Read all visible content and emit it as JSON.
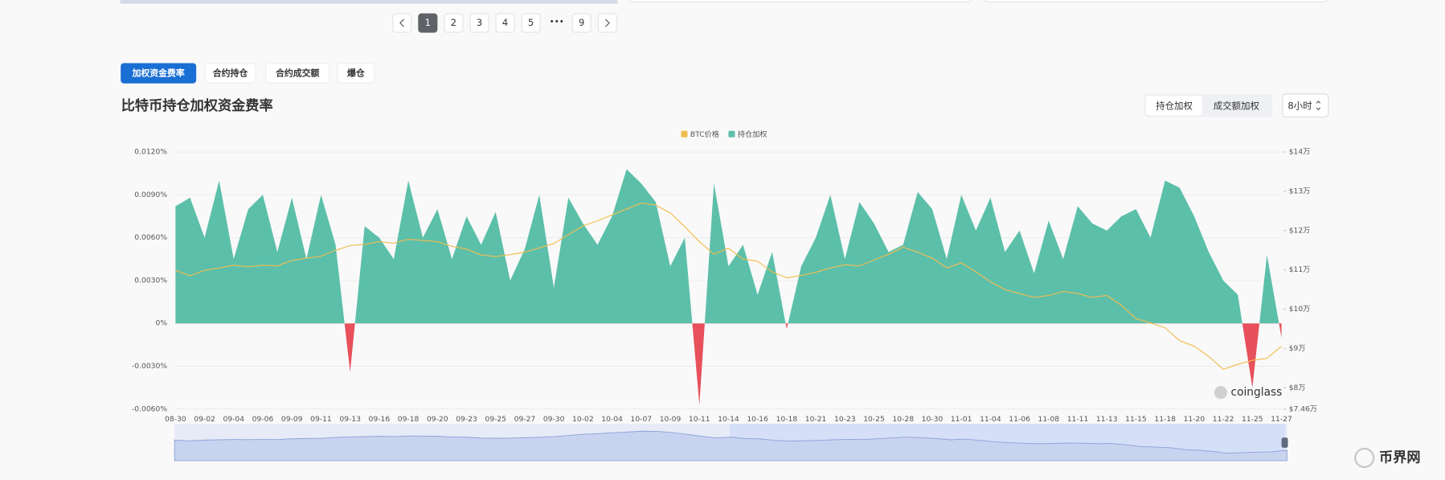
{
  "pagination": {
    "pages": [
      "1",
      "2",
      "3",
      "4",
      "5",
      "9"
    ],
    "ellipsis": "•••"
  },
  "tabs": [
    "加权资金费率",
    "合约持仓",
    "合约成交额",
    "爆仓"
  ],
  "title": "比特币持仓加权资金费率",
  "weighting_toggle": [
    "持仓加权",
    "成交额加权"
  ],
  "interval_select": "8小时",
  "watermark": "coinglass",
  "site_logo": "币界网",
  "chart_data": {
    "type": "area",
    "categories": [
      "08-30",
      null,
      "09-02",
      null,
      "09-04",
      null,
      "09-06",
      null,
      "09-09",
      null,
      "09-11",
      null,
      "09-13",
      null,
      "09-16",
      null,
      "09-18",
      null,
      "09-20",
      null,
      "09-23",
      null,
      "09-25",
      null,
      "09-27",
      null,
      "09-30",
      null,
      "10-02",
      null,
      "10-04",
      null,
      "10-07",
      null,
      "10-09",
      null,
      "10-11",
      null,
      "10-14",
      null,
      "10-16",
      null,
      "10-18",
      null,
      "10-21",
      null,
      "10-23",
      null,
      "10-25",
      null,
      "10-28",
      null,
      "10-30",
      null,
      "11-01",
      null,
      "11-04",
      null,
      "11-06",
      null,
      "11-08",
      null,
      "11-11",
      null,
      "11-13",
      null,
      "11-15",
      null,
      "11-18",
      null,
      "11-20",
      null,
      "11-22",
      null,
      "11-25",
      null,
      "11-27"
    ],
    "series": [
      {
        "name": "BTC价格",
        "color": "#f2bd4f",
        "type": "line",
        "axis": "y2",
        "values": [
          109900,
          108500,
          109900,
          110500,
          111200,
          110800,
          111200,
          111000,
          112400,
          113000,
          113500,
          115000,
          116200,
          116500,
          117200,
          116800,
          117800,
          117500,
          117200,
          116000,
          115300,
          113800,
          113400,
          113900,
          114500,
          115600,
          116700,
          119000,
          121200,
          122500,
          124000,
          125500,
          127000,
          126500,
          124500,
          121000,
          117200,
          114000,
          115500,
          112800,
          112200,
          109500,
          108000,
          108600,
          109400,
          110500,
          111300,
          111000,
          112500,
          114000,
          115800,
          114500,
          113000,
          110500,
          111800,
          109500,
          107000,
          105000,
          104000,
          103000,
          103500,
          104500,
          104000,
          103000,
          103500,
          101000,
          97600,
          96500,
          95300,
          92000,
          90600,
          88000,
          84700,
          86000,
          87000,
          87500,
          90600
        ]
      },
      {
        "name": "持仓加权",
        "color": "#5cbfaa",
        "negative_color": "#e8505b",
        "values": [
          0.0082,
          0.0088,
          0.006,
          0.01,
          0.0045,
          0.008,
          0.009,
          0.005,
          0.0088,
          0.0045,
          0.009,
          0.0055,
          -0.0034,
          0.0068,
          0.006,
          0.0045,
          0.01,
          0.006,
          0.008,
          0.0045,
          0.0075,
          0.0055,
          0.0078,
          0.003,
          0.0052,
          0.009,
          0.0025,
          0.0088,
          0.007,
          0.0055,
          0.0075,
          0.0108,
          0.0098,
          0.0085,
          0.004,
          0.006,
          -0.0057,
          0.0098,
          0.004,
          0.0055,
          0.002,
          0.005,
          -0.0004,
          0.004,
          0.006,
          0.009,
          0.0045,
          0.0085,
          0.007,
          0.005,
          0.0055,
          0.0092,
          0.008,
          0.0045,
          0.009,
          0.0065,
          0.0088,
          0.005,
          0.0065,
          0.0035,
          0.0072,
          0.0045,
          0.0082,
          0.007,
          0.0065,
          0.0075,
          0.008,
          0.006,
          0.01,
          0.0095,
          0.0075,
          0.005,
          0.003,
          0.002,
          -0.0045,
          0.0048,
          -0.001
        ]
      }
    ],
    "ylim": [
      -0.006,
      0.012
    ],
    "yticks": [
      {
        "value": -0.006,
        "label": "-0.0060%"
      },
      {
        "value": -0.003,
        "label": "-0.0030%"
      },
      {
        "value": 0,
        "label": "0%"
      },
      {
        "value": 0.003,
        "label": "0.0030%"
      },
      {
        "value": 0.006,
        "label": "0.0060%"
      },
      {
        "value": 0.009,
        "label": "0.0090%"
      },
      {
        "value": 0.012,
        "label": "0.0120%"
      }
    ],
    "y2lim": [
      74600,
      140000
    ],
    "y2ticks": [
      {
        "value": 74600,
        "label": "$7.46万"
      },
      {
        "value": 80000,
        "label": "$8万"
      },
      {
        "value": 90000,
        "label": "$9万"
      },
      {
        "value": 100000,
        "label": "$10万"
      },
      {
        "value": 110000,
        "label": "$11万"
      },
      {
        "value": 120000,
        "label": "$12万"
      },
      {
        "value": 130000,
        "label": "$13万"
      },
      {
        "value": 140000,
        "label": "$14万"
      }
    ],
    "grid": true,
    "legend": "top"
  }
}
